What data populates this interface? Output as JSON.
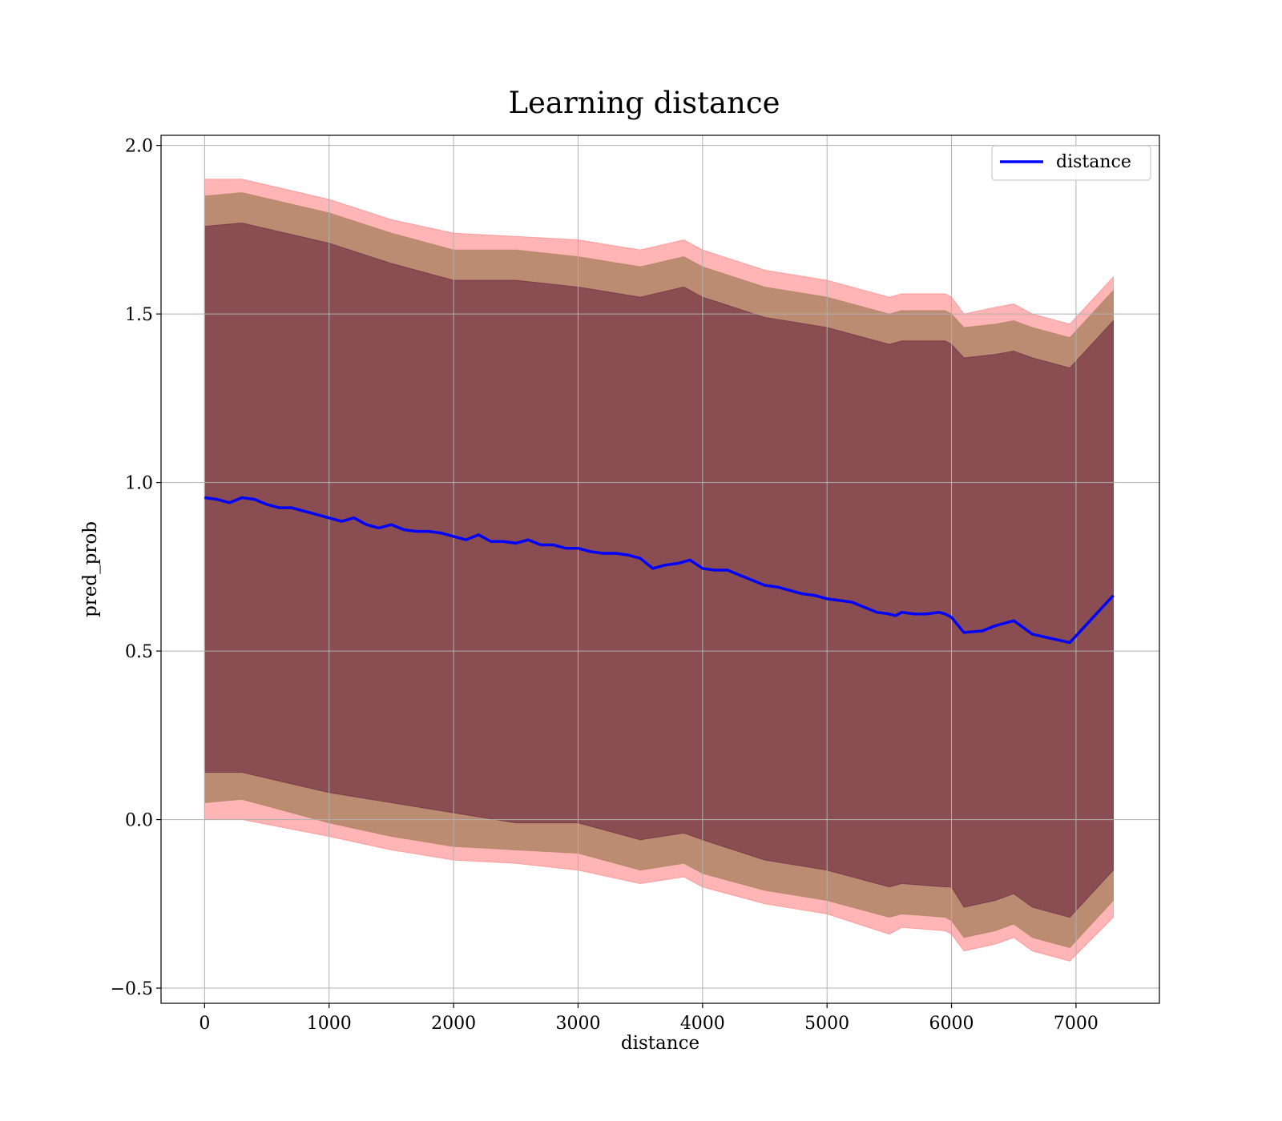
{
  "chart_data": {
    "type": "line",
    "title": "Learning distance",
    "xlabel": "distance",
    "ylabel": "pred_prob",
    "xlim": [
      -350,
      7670
    ],
    "ylim": [
      -0.545,
      2.03
    ],
    "x_ticks": [
      0,
      1000,
      2000,
      3000,
      4000,
      5000,
      6000,
      7000
    ],
    "x_tick_labels": [
      "0",
      "1000",
      "2000",
      "3000",
      "4000",
      "5000",
      "6000",
      "7000"
    ],
    "y_ticks": [
      -0.5,
      0.0,
      0.5,
      1.0,
      1.5,
      2.0
    ],
    "y_tick_labels": [
      "−0.5",
      "0.0",
      "0.5",
      "1.0",
      "1.5",
      "2.0"
    ],
    "grid": true,
    "legend": {
      "position": "top-right",
      "entries": [
        "distance"
      ]
    },
    "colors": {
      "line": "#0000ff",
      "band_outer": "#ff6b6b",
      "band_middle": "#a07a55",
      "band_inner": "#5e1a38"
    },
    "series": [
      {
        "name": "distance",
        "x": [
          0,
          100,
          200,
          300,
          400,
          500,
          600,
          700,
          800,
          900,
          1000,
          1100,
          1200,
          1300,
          1400,
          1500,
          1600,
          1700,
          1800,
          1900,
          2000,
          2100,
          2200,
          2300,
          2400,
          2500,
          2600,
          2700,
          2800,
          2900,
          3000,
          3100,
          3200,
          3300,
          3400,
          3500,
          3600,
          3700,
          3800,
          3900,
          4000,
          4100,
          4200,
          4300,
          4400,
          4500,
          4600,
          4700,
          4800,
          4900,
          5000,
          5100,
          5200,
          5300,
          5400,
          5500,
          5550,
          5600,
          5700,
          5800,
          5900,
          5950,
          6000,
          6100,
          6250,
          6350,
          6500,
          6650,
          6950,
          7300
        ],
        "y": [
          0.955,
          0.95,
          0.94,
          0.955,
          0.95,
          0.935,
          0.925,
          0.925,
          0.915,
          0.905,
          0.895,
          0.885,
          0.895,
          0.875,
          0.865,
          0.875,
          0.86,
          0.855,
          0.855,
          0.85,
          0.84,
          0.83,
          0.845,
          0.825,
          0.825,
          0.82,
          0.83,
          0.815,
          0.815,
          0.805,
          0.805,
          0.795,
          0.79,
          0.79,
          0.785,
          0.775,
          0.745,
          0.755,
          0.76,
          0.77,
          0.745,
          0.74,
          0.74,
          0.725,
          0.71,
          0.695,
          0.69,
          0.68,
          0.67,
          0.665,
          0.655,
          0.65,
          0.645,
          0.63,
          0.615,
          0.61,
          0.605,
          0.615,
          0.61,
          0.61,
          0.615,
          0.61,
          0.6,
          0.555,
          0.56,
          0.575,
          0.59,
          0.55,
          0.525,
          0.665
        ]
      },
      {
        "name": "band_outer_upper",
        "x": [
          0,
          300,
          1000,
          1500,
          2000,
          2500,
          3000,
          3500,
          3850,
          4000,
          4500,
          5000,
          5500,
          5600,
          5950,
          6000,
          6100,
          6350,
          6500,
          6650,
          6950,
          7300
        ],
        "y": [
          1.9,
          1.9,
          1.84,
          1.78,
          1.74,
          1.73,
          1.72,
          1.69,
          1.72,
          1.69,
          1.63,
          1.6,
          1.55,
          1.56,
          1.56,
          1.55,
          1.5,
          1.52,
          1.53,
          1.5,
          1.47,
          1.61
        ]
      },
      {
        "name": "band_middle_upper",
        "x": [
          0,
          300,
          1000,
          1500,
          2000,
          2500,
          3000,
          3500,
          3850,
          4000,
          4500,
          5000,
          5500,
          5600,
          5950,
          6000,
          6100,
          6350,
          6500,
          6650,
          6950,
          7300
        ],
        "y": [
          1.85,
          1.86,
          1.8,
          1.74,
          1.69,
          1.69,
          1.67,
          1.64,
          1.67,
          1.64,
          1.58,
          1.55,
          1.5,
          1.51,
          1.51,
          1.5,
          1.46,
          1.47,
          1.48,
          1.46,
          1.43,
          1.57
        ]
      },
      {
        "name": "band_inner_upper",
        "x": [
          0,
          300,
          1000,
          1500,
          2000,
          2500,
          3000,
          3500,
          3850,
          4000,
          4500,
          5000,
          5500,
          5600,
          5950,
          6000,
          6100,
          6350,
          6500,
          6650,
          6950,
          7300
        ],
        "y": [
          1.76,
          1.77,
          1.71,
          1.65,
          1.6,
          1.6,
          1.58,
          1.55,
          1.58,
          1.55,
          1.49,
          1.46,
          1.41,
          1.42,
          1.42,
          1.41,
          1.37,
          1.38,
          1.39,
          1.37,
          1.34,
          1.48
        ]
      },
      {
        "name": "band_inner_lower",
        "x": [
          0,
          300,
          1000,
          1500,
          2000,
          2500,
          3000,
          3500,
          3850,
          4000,
          4500,
          5000,
          5500,
          5600,
          5950,
          6000,
          6100,
          6350,
          6500,
          6650,
          6950,
          7300
        ],
        "y": [
          0.14,
          0.14,
          0.08,
          0.05,
          0.02,
          -0.01,
          -0.01,
          -0.06,
          -0.04,
          -0.06,
          -0.12,
          -0.15,
          -0.2,
          -0.19,
          -0.2,
          -0.2,
          -0.26,
          -0.24,
          -0.22,
          -0.26,
          -0.29,
          -0.15
        ]
      },
      {
        "name": "band_middle_lower",
        "x": [
          0,
          300,
          1000,
          1500,
          2000,
          2500,
          3000,
          3500,
          3850,
          4000,
          4500,
          5000,
          5500,
          5600,
          5950,
          6000,
          6100,
          6350,
          6500,
          6650,
          6950,
          7300
        ],
        "y": [
          0.05,
          0.06,
          -0.01,
          -0.05,
          -0.08,
          -0.09,
          -0.1,
          -0.15,
          -0.13,
          -0.16,
          -0.21,
          -0.24,
          -0.29,
          -0.28,
          -0.29,
          -0.3,
          -0.35,
          -0.33,
          -0.31,
          -0.35,
          -0.38,
          -0.24
        ]
      },
      {
        "name": "band_outer_lower",
        "x": [
          0,
          300,
          1000,
          1500,
          2000,
          2500,
          3000,
          3500,
          3850,
          4000,
          4500,
          5000,
          5500,
          5600,
          5950,
          6000,
          6100,
          6350,
          6500,
          6650,
          6950,
          7300
        ],
        "y": [
          0.0,
          0.0,
          -0.05,
          -0.09,
          -0.12,
          -0.13,
          -0.15,
          -0.19,
          -0.17,
          -0.2,
          -0.25,
          -0.28,
          -0.34,
          -0.32,
          -0.33,
          -0.34,
          -0.39,
          -0.37,
          -0.35,
          -0.39,
          -0.42,
          -0.29
        ]
      }
    ]
  }
}
